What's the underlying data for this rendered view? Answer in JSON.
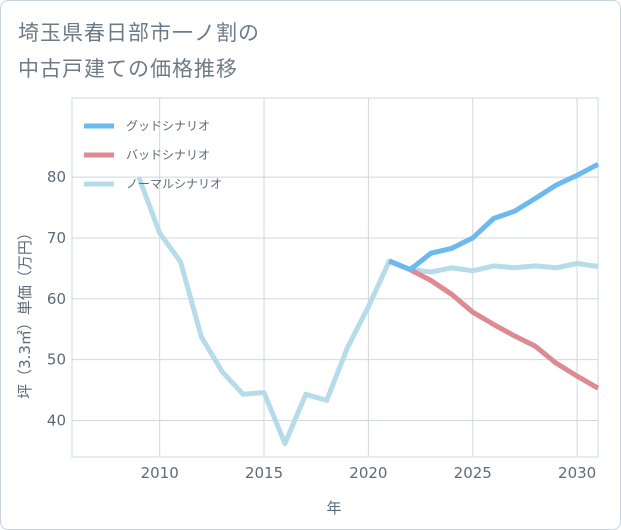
{
  "title": {
    "line1": "埼玉県春日部市一ノ割の",
    "line2": "中古戸建ての価格推移"
  },
  "chart_data": {
    "type": "line",
    "xlabel": "年",
    "ylabel": "坪（3.3㎡）単価（万円）",
    "xlim": [
      2005.8,
      2031.0
    ],
    "ylim": [
      34.0,
      93.0
    ],
    "xticks": [
      2010,
      2015,
      2020,
      2025,
      2030
    ],
    "yticks": [
      40,
      50,
      60,
      70,
      80
    ],
    "grid": true,
    "legend_position": "top-left",
    "series": [
      {
        "name": "グッドシナリオ",
        "color": "#6cb9ee",
        "points": [
          [
            2021,
            66.2
          ],
          [
            2022,
            64.8
          ],
          [
            2023,
            67.5
          ],
          [
            2024,
            68.3
          ],
          [
            2025,
            70.0
          ],
          [
            2026,
            73.2
          ],
          [
            2027,
            74.4
          ],
          [
            2028,
            76.5
          ],
          [
            2029,
            78.7
          ],
          [
            2030,
            80.3
          ],
          [
            2031,
            82.1
          ]
        ]
      },
      {
        "name": "バッドシナリオ",
        "color": "#dd8a92",
        "points": [
          [
            2021,
            66.2
          ],
          [
            2022,
            64.8
          ],
          [
            2023,
            63.0
          ],
          [
            2024,
            60.7
          ],
          [
            2025,
            57.8
          ],
          [
            2026,
            55.8
          ],
          [
            2027,
            53.9
          ],
          [
            2028,
            52.2
          ],
          [
            2029,
            49.4
          ],
          [
            2030,
            47.3
          ],
          [
            2031,
            45.3
          ]
        ]
      },
      {
        "name": "ノーマルシナリオ",
        "color": "#b6dcea",
        "points": [
          [
            2009,
            80.0
          ],
          [
            2010,
            70.8
          ],
          [
            2011,
            66.1
          ],
          [
            2012,
            53.7
          ],
          [
            2013,
            48.0
          ],
          [
            2014,
            44.3
          ],
          [
            2015,
            44.6
          ],
          [
            2016,
            36.2
          ],
          [
            2017,
            44.3
          ],
          [
            2018,
            43.3
          ],
          [
            2019,
            52.0
          ],
          [
            2020,
            58.7
          ],
          [
            2021,
            66.2
          ],
          [
            2022,
            64.8
          ],
          [
            2023,
            64.4
          ],
          [
            2024,
            65.1
          ],
          [
            2025,
            64.6
          ],
          [
            2026,
            65.4
          ],
          [
            2027,
            65.1
          ],
          [
            2028,
            65.4
          ],
          [
            2029,
            65.1
          ],
          [
            2030,
            65.8
          ],
          [
            2031,
            65.3
          ]
        ]
      }
    ]
  }
}
